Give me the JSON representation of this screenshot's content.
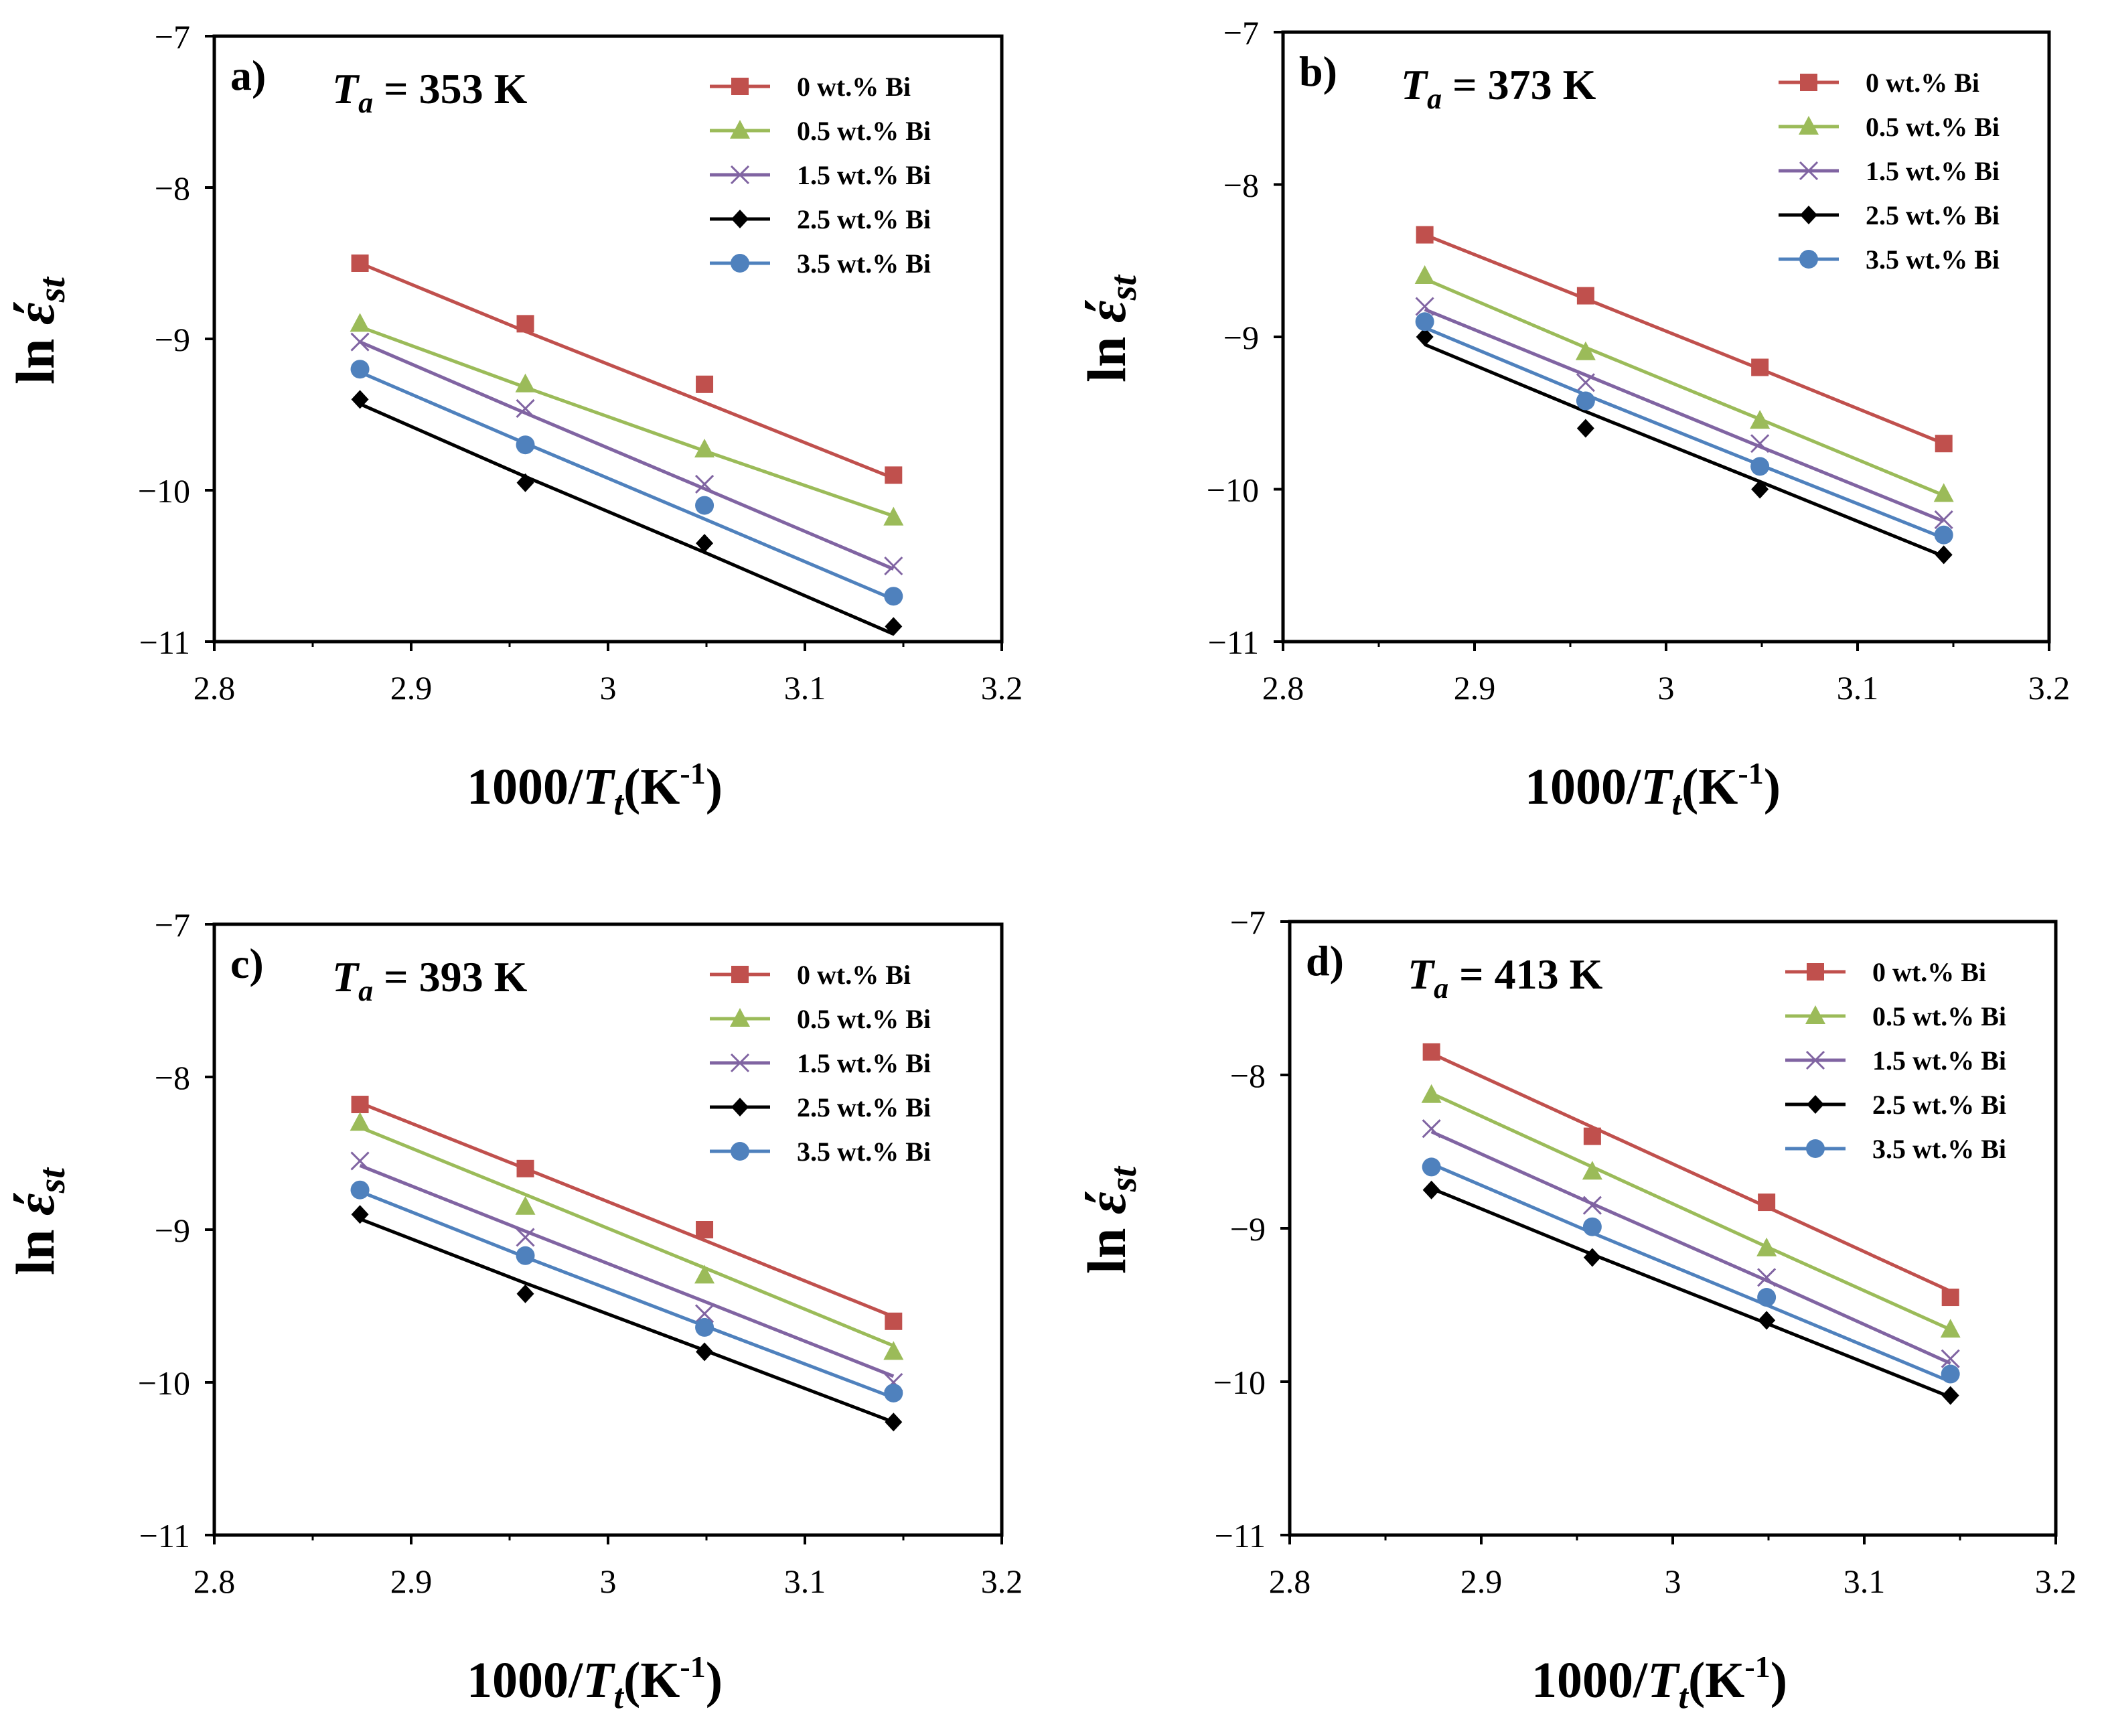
{
  "chart_data": [
    {
      "type": "line",
      "panel_label": "a)",
      "annotation": {
        "symbol": "T",
        "subscript": "a",
        "text": " = 353 K"
      },
      "xlabel": {
        "prefix": "1000/",
        "symbol": "T",
        "subscript": "t",
        "suffix": "(K",
        "exponent": "-1",
        "close": ")"
      },
      "ylabel": {
        "prefix": "ln ",
        "symbol": "έ",
        "subscript": "st"
      },
      "xlim": [
        2.8,
        3.2
      ],
      "ylim": [
        -11,
        -7
      ],
      "xticks": [
        "2.8",
        "2.9",
        "3",
        "3.1",
        "3.2"
      ],
      "yticks": [
        "−7",
        "−8",
        "−9",
        "−10",
        "−11"
      ],
      "x": [
        2.874,
        2.958,
        3.049,
        3.145
      ],
      "series": [
        {
          "name": "0 wt.% Bi",
          "color": "#c0504d",
          "marker": "square",
          "values": [
            -8.5,
            -8.9,
            -9.3,
            -9.9
          ],
          "fit": [
            -8.5,
            -8.95,
            -9.42,
            -9.92
          ]
        },
        {
          "name": "0.5 wt.% Bi",
          "color": "#9bbb59",
          "marker": "triangle",
          "values": [
            -8.9,
            -9.3,
            -9.73,
            -10.18
          ],
          "fit": [
            -8.92,
            -9.32,
            -9.74,
            -10.17
          ]
        },
        {
          "name": "1.5 wt.% Bi",
          "color": "#8064a2",
          "marker": "x",
          "values": [
            -9.02,
            -9.46,
            -9.96,
            -10.5
          ],
          "fit": [
            -9.02,
            -9.49,
            -9.99,
            -10.52
          ]
        },
        {
          "name": "2.5 wt.% Bi",
          "color": "#000000",
          "marker": "diamond",
          "values": [
            -9.4,
            -9.95,
            -10.35,
            -10.9
          ],
          "fit": [
            -9.43,
            -9.91,
            -10.41,
            -10.95
          ]
        },
        {
          "name": "3.5 wt.% Bi",
          "color": "#4f81bd",
          "marker": "circle",
          "values": [
            -9.2,
            -9.7,
            -10.1,
            -10.7
          ],
          "fit": [
            -9.22,
            -9.69,
            -10.19,
            -10.72
          ]
        }
      ]
    },
    {
      "type": "line",
      "panel_label": "b)",
      "annotation": {
        "symbol": "T",
        "subscript": "a",
        "text": " = 373 K"
      },
      "xlabel": {
        "prefix": "1000/",
        "symbol": "T",
        "subscript": "t",
        "suffix": "(K",
        "exponent": "-1",
        "close": ")"
      },
      "ylabel": {
        "prefix": "ln ",
        "symbol": "έ",
        "subscript": "st"
      },
      "xlim": [
        2.8,
        3.2
      ],
      "ylim": [
        -11,
        -7
      ],
      "xticks": [
        "2.8",
        "2.9",
        "3",
        "3.1",
        "3.2"
      ],
      "yticks": [
        "−7",
        "−8",
        "−9",
        "−10",
        "−11"
      ],
      "x": [
        2.874,
        2.958,
        3.049,
        3.145
      ],
      "series": [
        {
          "name": "0 wt.% Bi",
          "color": "#c0504d",
          "marker": "square",
          "values": [
            -8.33,
            -8.73,
            -9.2,
            -9.7
          ],
          "fit": [
            -8.33,
            -8.75,
            -9.21,
            -9.7
          ]
        },
        {
          "name": "0.5 wt.% Bi",
          "color": "#9bbb59",
          "marker": "triangle",
          "values": [
            -8.6,
            -9.1,
            -9.55,
            -10.03
          ],
          "fit": [
            -8.62,
            -9.07,
            -9.54,
            -10.04
          ]
        },
        {
          "name": "1.5 wt.% Bi",
          "color": "#8064a2",
          "marker": "x",
          "values": [
            -8.8,
            -9.3,
            -9.7,
            -10.2
          ],
          "fit": [
            -8.82,
            -9.25,
            -9.72,
            -10.21
          ]
        },
        {
          "name": "2.5 wt.% Bi",
          "color": "#000000",
          "marker": "diamond",
          "values": [
            -9.0,
            -9.6,
            -10.0,
            -10.43
          ],
          "fit": [
            -9.05,
            -9.49,
            -9.95,
            -10.44
          ]
        },
        {
          "name": "3.5 wt.% Bi",
          "color": "#4f81bd",
          "marker": "circle",
          "values": [
            -8.9,
            -9.42,
            -9.85,
            -10.3
          ],
          "fit": [
            -8.94,
            -9.38,
            -9.84,
            -10.32
          ]
        }
      ]
    },
    {
      "type": "line",
      "panel_label": "c)",
      "annotation": {
        "symbol": "T",
        "subscript": "a",
        "text": " = 393 K"
      },
      "xlabel": {
        "prefix": "1000/",
        "symbol": "T",
        "subscript": "t",
        "suffix": "(K",
        "exponent": "-1",
        "close": ")"
      },
      "ylabel": {
        "prefix": "ln ",
        "symbol": "έ",
        "subscript": "st"
      },
      "xlim": [
        2.8,
        3.2
      ],
      "ylim": [
        -11,
        -7
      ],
      "xticks": [
        "2.8",
        "2.9",
        "3",
        "3.1",
        "3.2"
      ],
      "yticks": [
        "−7",
        "−8",
        "−9",
        "−10",
        "−11"
      ],
      "x": [
        2.874,
        2.958,
        3.049,
        3.145
      ],
      "series": [
        {
          "name": "0 wt.% Bi",
          "color": "#c0504d",
          "marker": "square",
          "values": [
            -8.18,
            -8.6,
            -9.0,
            -9.6
          ],
          "fit": [
            -8.17,
            -8.6,
            -9.07,
            -9.57
          ]
        },
        {
          "name": "0.5 wt.% Bi",
          "color": "#9bbb59",
          "marker": "triangle",
          "values": [
            -8.3,
            -8.85,
            -9.3,
            -9.8
          ],
          "fit": [
            -8.33,
            -8.77,
            -9.25,
            -9.76
          ]
        },
        {
          "name": "1.5 wt.% Bi",
          "color": "#8064a2",
          "marker": "x",
          "values": [
            -8.55,
            -9.05,
            -9.55,
            -10.0
          ],
          "fit": [
            -8.58,
            -9.01,
            -9.47,
            -9.96
          ]
        },
        {
          "name": "2.5 wt.% Bi",
          "color": "#000000",
          "marker": "diamond",
          "values": [
            -8.9,
            -9.42,
            -9.8,
            -10.26
          ],
          "fit": [
            -8.93,
            -9.35,
            -9.79,
            -10.26
          ]
        },
        {
          "name": "3.5 wt.% Bi",
          "color": "#4f81bd",
          "marker": "circle",
          "values": [
            -8.74,
            -9.17,
            -9.64,
            -10.07
          ],
          "fit": [
            -8.75,
            -9.18,
            -9.63,
            -10.1
          ]
        }
      ]
    },
    {
      "type": "line",
      "panel_label": "d)",
      "annotation": {
        "symbol": "T",
        "subscript": "a",
        "text": " = 413 K"
      },
      "xlabel": {
        "prefix": "1000/",
        "symbol": "T",
        "subscript": "t",
        "suffix": "(K",
        "exponent": "-1",
        "close": ")"
      },
      "ylabel": {
        "prefix": "ln ",
        "symbol": "έ",
        "subscript": "st"
      },
      "xlim": [
        2.8,
        3.2
      ],
      "ylim": [
        -11,
        -7
      ],
      "xticks": [
        "2.8",
        "2.9",
        "3",
        "3.1",
        "3.2"
      ],
      "yticks": [
        "−7",
        "−8",
        "−9",
        "−10",
        "−11"
      ],
      "x": [
        2.874,
        2.958,
        3.049,
        3.145
      ],
      "series": [
        {
          "name": "0 wt.% Bi",
          "color": "#c0504d",
          "marker": "square",
          "values": [
            -7.85,
            -8.4,
            -8.83,
            -9.45
          ],
          "fit": [
            -7.86,
            -8.34,
            -8.86,
            -9.41
          ]
        },
        {
          "name": "0.5 wt.% Bi",
          "color": "#9bbb59",
          "marker": "triangle",
          "values": [
            -8.13,
            -8.63,
            -9.13,
            -9.66
          ],
          "fit": [
            -8.12,
            -8.6,
            -9.12,
            -9.66
          ]
        },
        {
          "name": "1.5 wt.% Bi",
          "color": "#8064a2",
          "marker": "x",
          "values": [
            -8.35,
            -8.85,
            -9.32,
            -9.85
          ],
          "fit": [
            -8.37,
            -8.84,
            -9.34,
            -9.88
          ]
        },
        {
          "name": "2.5 wt.% Bi",
          "color": "#000000",
          "marker": "diamond",
          "values": [
            -8.75,
            -9.19,
            -9.6,
            -10.09
          ],
          "fit": [
            -8.74,
            -9.17,
            -9.62,
            -10.1
          ]
        },
        {
          "name": "3.5 wt.% Bi",
          "color": "#4f81bd",
          "marker": "circle",
          "values": [
            -8.6,
            -8.99,
            -9.45,
            -9.95
          ],
          "fit": [
            -8.58,
            -9.03,
            -9.5,
            -10.0
          ]
        }
      ]
    }
  ]
}
